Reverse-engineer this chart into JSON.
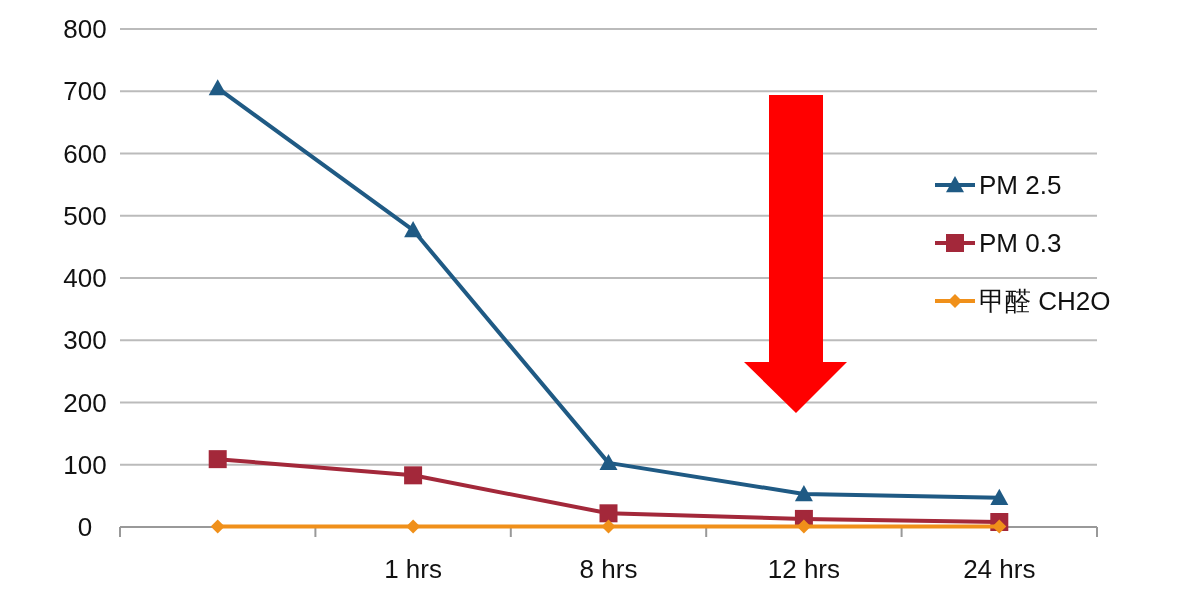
{
  "chart_data": {
    "type": "line",
    "categories": [
      null,
      "1 hrs",
      "8 hrs",
      "12 hrs",
      "24 hrs"
    ],
    "series": [
      {
        "name": "PM 2.5",
        "color": "#1f5a84",
        "marker": "triangle",
        "values": [
          705,
          477,
          103,
          53,
          47
        ]
      },
      {
        "name": "PM 0.3",
        "color": "#a3283a",
        "marker": "square",
        "values": [
          109,
          83,
          22,
          13,
          8
        ]
      },
      {
        "name": "甲醛 CH2O",
        "color": "#f0901a",
        "marker": "diamond",
        "values": [
          1,
          1,
          1,
          1,
          1
        ]
      }
    ],
    "ylim": [
      0,
      800
    ],
    "yticks": [
      0,
      100,
      200,
      300,
      400,
      500,
      600,
      700,
      800
    ],
    "grid": "y",
    "legend": "right",
    "line_style": "solid"
  }
}
